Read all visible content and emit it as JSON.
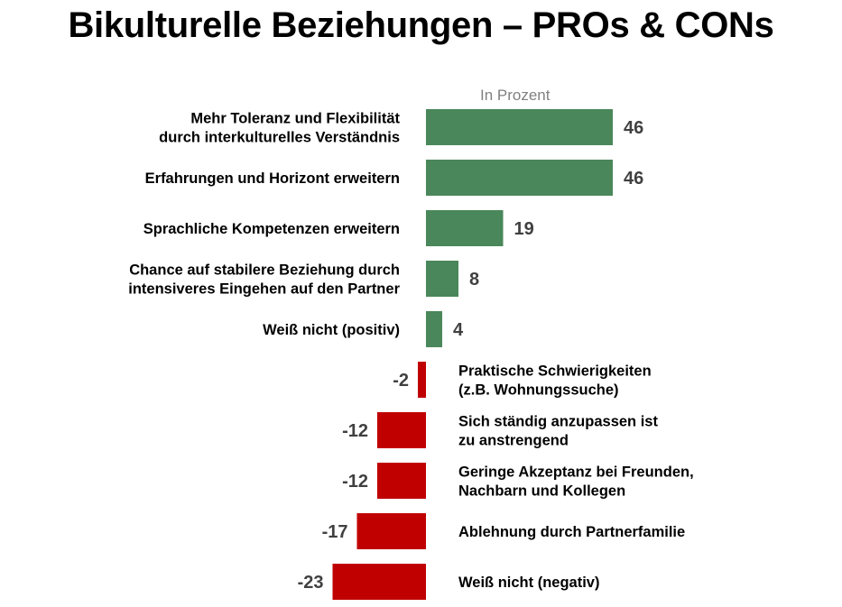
{
  "title": "Bikulturelle Beziehungen – PROs & CONs",
  "unit_note": "In Prozent",
  "colors": {
    "positive": "#4a875a",
    "negative": "#c00000",
    "value_text": "#404040"
  },
  "chart_data": {
    "type": "bar",
    "orientation": "horizontal",
    "categories": [
      [
        "Mehr Toleranz und Flexibilität",
        "durch interkulturelles Verständnis"
      ],
      [
        "Erfahrungen und Horizont erweitern"
      ],
      [
        "Sprachliche Kompetenzen erweitern"
      ],
      [
        "Chance auf stabilere Beziehung durch",
        "intensiveres Eingehen auf den Partner"
      ],
      [
        "Weiß nicht (positiv)"
      ],
      [
        "Praktische Schwierigkeiten",
        "(z.B. Wohnungssuche)"
      ],
      [
        "Sich ständig anzupassen ist",
        "zu anstrengend"
      ],
      [
        "Geringe Akzeptanz bei Freunden,",
        "Nachbarn und Kollegen"
      ],
      [
        "Ablehnung durch Partnerfamilie"
      ],
      [
        "Weiß nicht (negativ)"
      ]
    ],
    "values": [
      46,
      46,
      19,
      8,
      4,
      -2,
      -12,
      -12,
      -17,
      -23
    ],
    "value_labels": [
      "46",
      "46",
      "19",
      "8",
      "4",
      "-2",
      "-12",
      "-12",
      "-17",
      "-23"
    ],
    "ylabel": "In Prozent",
    "legend": "none",
    "grid": false
  }
}
